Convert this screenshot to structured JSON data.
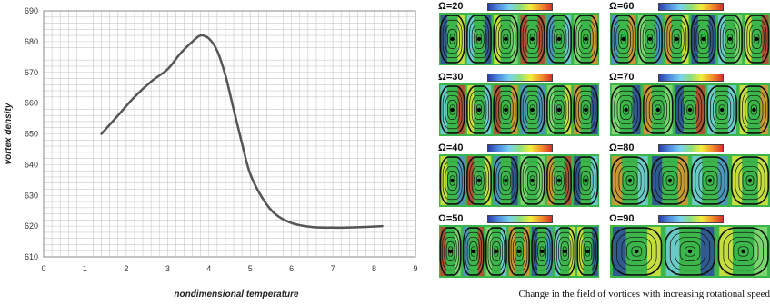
{
  "chart_data": {
    "type": "line",
    "xlabel": "nondimensional temperature",
    "ylabel": "vortex density",
    "xlim": [
      0,
      9
    ],
    "ylim": [
      610,
      690
    ],
    "xticks": [
      "0",
      "1",
      "2",
      "3",
      "4",
      "5",
      "6",
      "7",
      "8",
      "9"
    ],
    "yticks": [
      "610",
      "620",
      "630",
      "640",
      "650",
      "660",
      "670",
      "680",
      "690"
    ],
    "grid": true,
    "series": [
      {
        "x": [
          1.4,
          1.8,
          2.2,
          2.6,
          3.0,
          3.3,
          3.6,
          3.8,
          4.0,
          4.2,
          4.4,
          4.6,
          4.8,
          5.0,
          5.3,
          5.6,
          6.0,
          6.5,
          7.0,
          7.5,
          8.2
        ],
        "y": [
          650,
          656,
          662,
          667,
          671,
          676,
          680,
          682,
          681,
          677,
          669,
          658,
          647,
          637,
          629,
          624,
          621,
          619.7,
          619.5,
          619.6,
          620
        ]
      }
    ]
  },
  "colors": {
    "line": "#555555",
    "grid": "#c8c8c8",
    "field_bg": "#3cb54a"
  },
  "panels": [
    {
      "label": "Ω=20",
      "vortices": 6
    },
    {
      "label": "Ω=60",
      "vortices": 6
    },
    {
      "label": "Ω=30",
      "vortices": 6
    },
    {
      "label": "Ω=70",
      "vortices": 5
    },
    {
      "label": "Ω=40",
      "vortices": 6
    },
    {
      "label": "Ω=80",
      "vortices": 4
    },
    {
      "label": "Ω=50",
      "vortices": 7
    },
    {
      "label": "Ω=90",
      "vortices": 3
    }
  ],
  "caption": "Change in the field of vortices with increasing rotational speed"
}
